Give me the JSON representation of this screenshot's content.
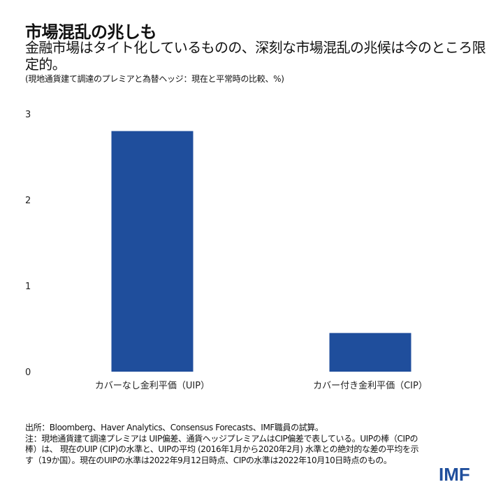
{
  "title": "市場混乱の兆しも",
  "subtitle": "金融市場はタイト化しているものの、深刻な市場混乱の兆候は今のところ限定的。",
  "unit_note": "(現地通貨建て調達のプレミアと為替ヘッジ：現在と平常時の比較、%)",
  "chart_data": {
    "type": "bar",
    "categories": [
      "カバーなし金利平価（UIP）",
      "カバー付き金利平価（CIP）"
    ],
    "values": [
      2.8,
      0.45
    ],
    "ylim": [
      0,
      3
    ],
    "yticks": [
      "0",
      "1",
      "2",
      "3"
    ],
    "xlabel": "",
    "ylabel": "",
    "bar_color": "#1f4e9c",
    "grid": false
  },
  "notes": [
    "出所：Bloomberg、Haver Analytics、Consensus Forecasts、IMF職員の試算。",
    "注：現地通貨建て調達プレミアは UIP偏差、通貨ヘッジプレミアムはCIP偏差で表している。UIPの棒（CIPの棒）は、 現在のUIP (CIP)の水準と、UIPの平均 (2016年1月から2020年2月) 水準との絶対的な差の平均を示す（19か国）。現在のUIPの水準は2022年9月12日時点、CIPの水準は2022年10月10日時点のもの。"
  ],
  "logo": "IMF"
}
